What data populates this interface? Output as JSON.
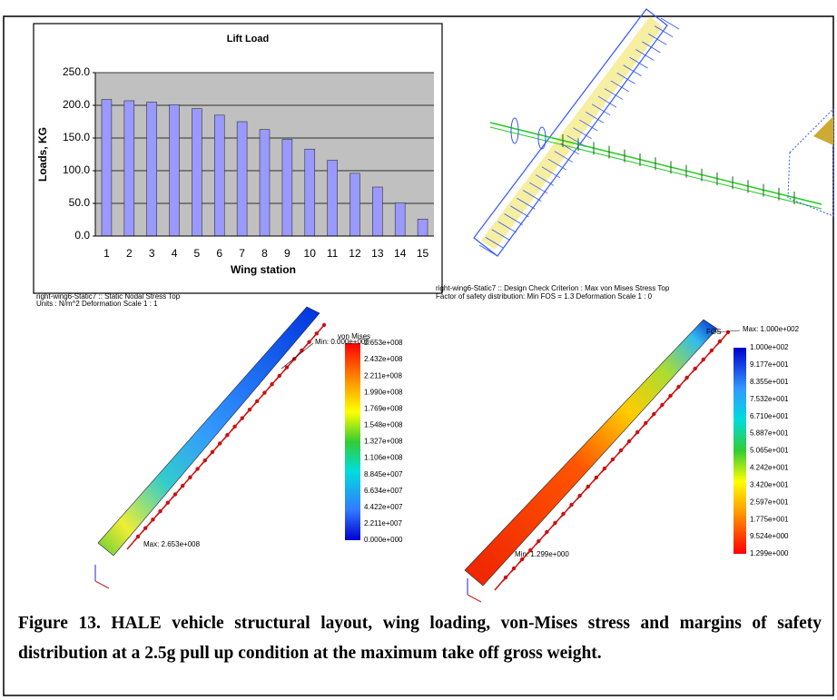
{
  "chart_data": {
    "type": "bar",
    "title": "Lift Load",
    "xlabel": "Wing station",
    "ylabel": "Loads, KG",
    "categories": [
      "1",
      "2",
      "3",
      "4",
      "5",
      "6",
      "7",
      "8",
      "9",
      "10",
      "11",
      "12",
      "13",
      "14",
      "15"
    ],
    "values": [
      209,
      207,
      205,
      201,
      195,
      185,
      175,
      163,
      148,
      133,
      116,
      96,
      75,
      51,
      26
    ],
    "color": "#9999ff",
    "ylim": [
      0,
      250
    ],
    "yticks": [
      {
        "value": 0,
        "label": "0.0"
      },
      {
        "value": 50,
        "label": "50.0"
      },
      {
        "value": 100,
        "label": "100.0"
      },
      {
        "value": 150,
        "label": "150.0"
      },
      {
        "value": 200,
        "label": "200.0"
      },
      {
        "value": 250,
        "label": "250.0"
      }
    ],
    "grid": true
  },
  "panels": [
    {
      "header": [
        "right-wing6-Static7 :: Static Nodal Stress Top",
        "Units : N/m^2   Deformation Scale  1 : 1"
      ],
      "colorbar_title": "von Mises",
      "colorbar_labels": [
        "2.653e+008",
        "2.432e+008",
        "2.211e+008",
        "1.990e+008",
        "1.769e+008",
        "1.548e+008",
        "1.327e+008",
        "1.106e+008",
        "8.845e+007",
        "6.634e+007",
        "4.422e+007",
        "2.211e+007",
        "0.000e+000"
      ],
      "min_label": "Min: 0.000e+000",
      "max_label": "Max: 2.653e+008"
    },
    {
      "header": [
        "right-wing6-Static7 :: Design Check Criterion : Max von Mises Stress Top",
        "Factor of safety distribution: Min FOS = 1.3          Deformation Scale  1 : 0"
      ],
      "colorbar_title": "FOS",
      "colorbar_labels": [
        "1.000e+002",
        "9.177e+001",
        "8.355e+001",
        "7.532e+001",
        "6.710e+001",
        "5.887e+001",
        "5.065e+001",
        "4.242e+001",
        "3.420e+001",
        "2.597e+001",
        "1.775e+001",
        "9.524e+000",
        "1.299e+000"
      ],
      "min_label": "Min: 1.299e+000",
      "max_label": "Max: 1.000e+002"
    }
  ],
  "caption": "Figure 13.  HALE vehicle structural layout, wing loading, von-Mises stress and margins of safety distribution at a 2.5g pull up condition at the maximum take off gross weight."
}
